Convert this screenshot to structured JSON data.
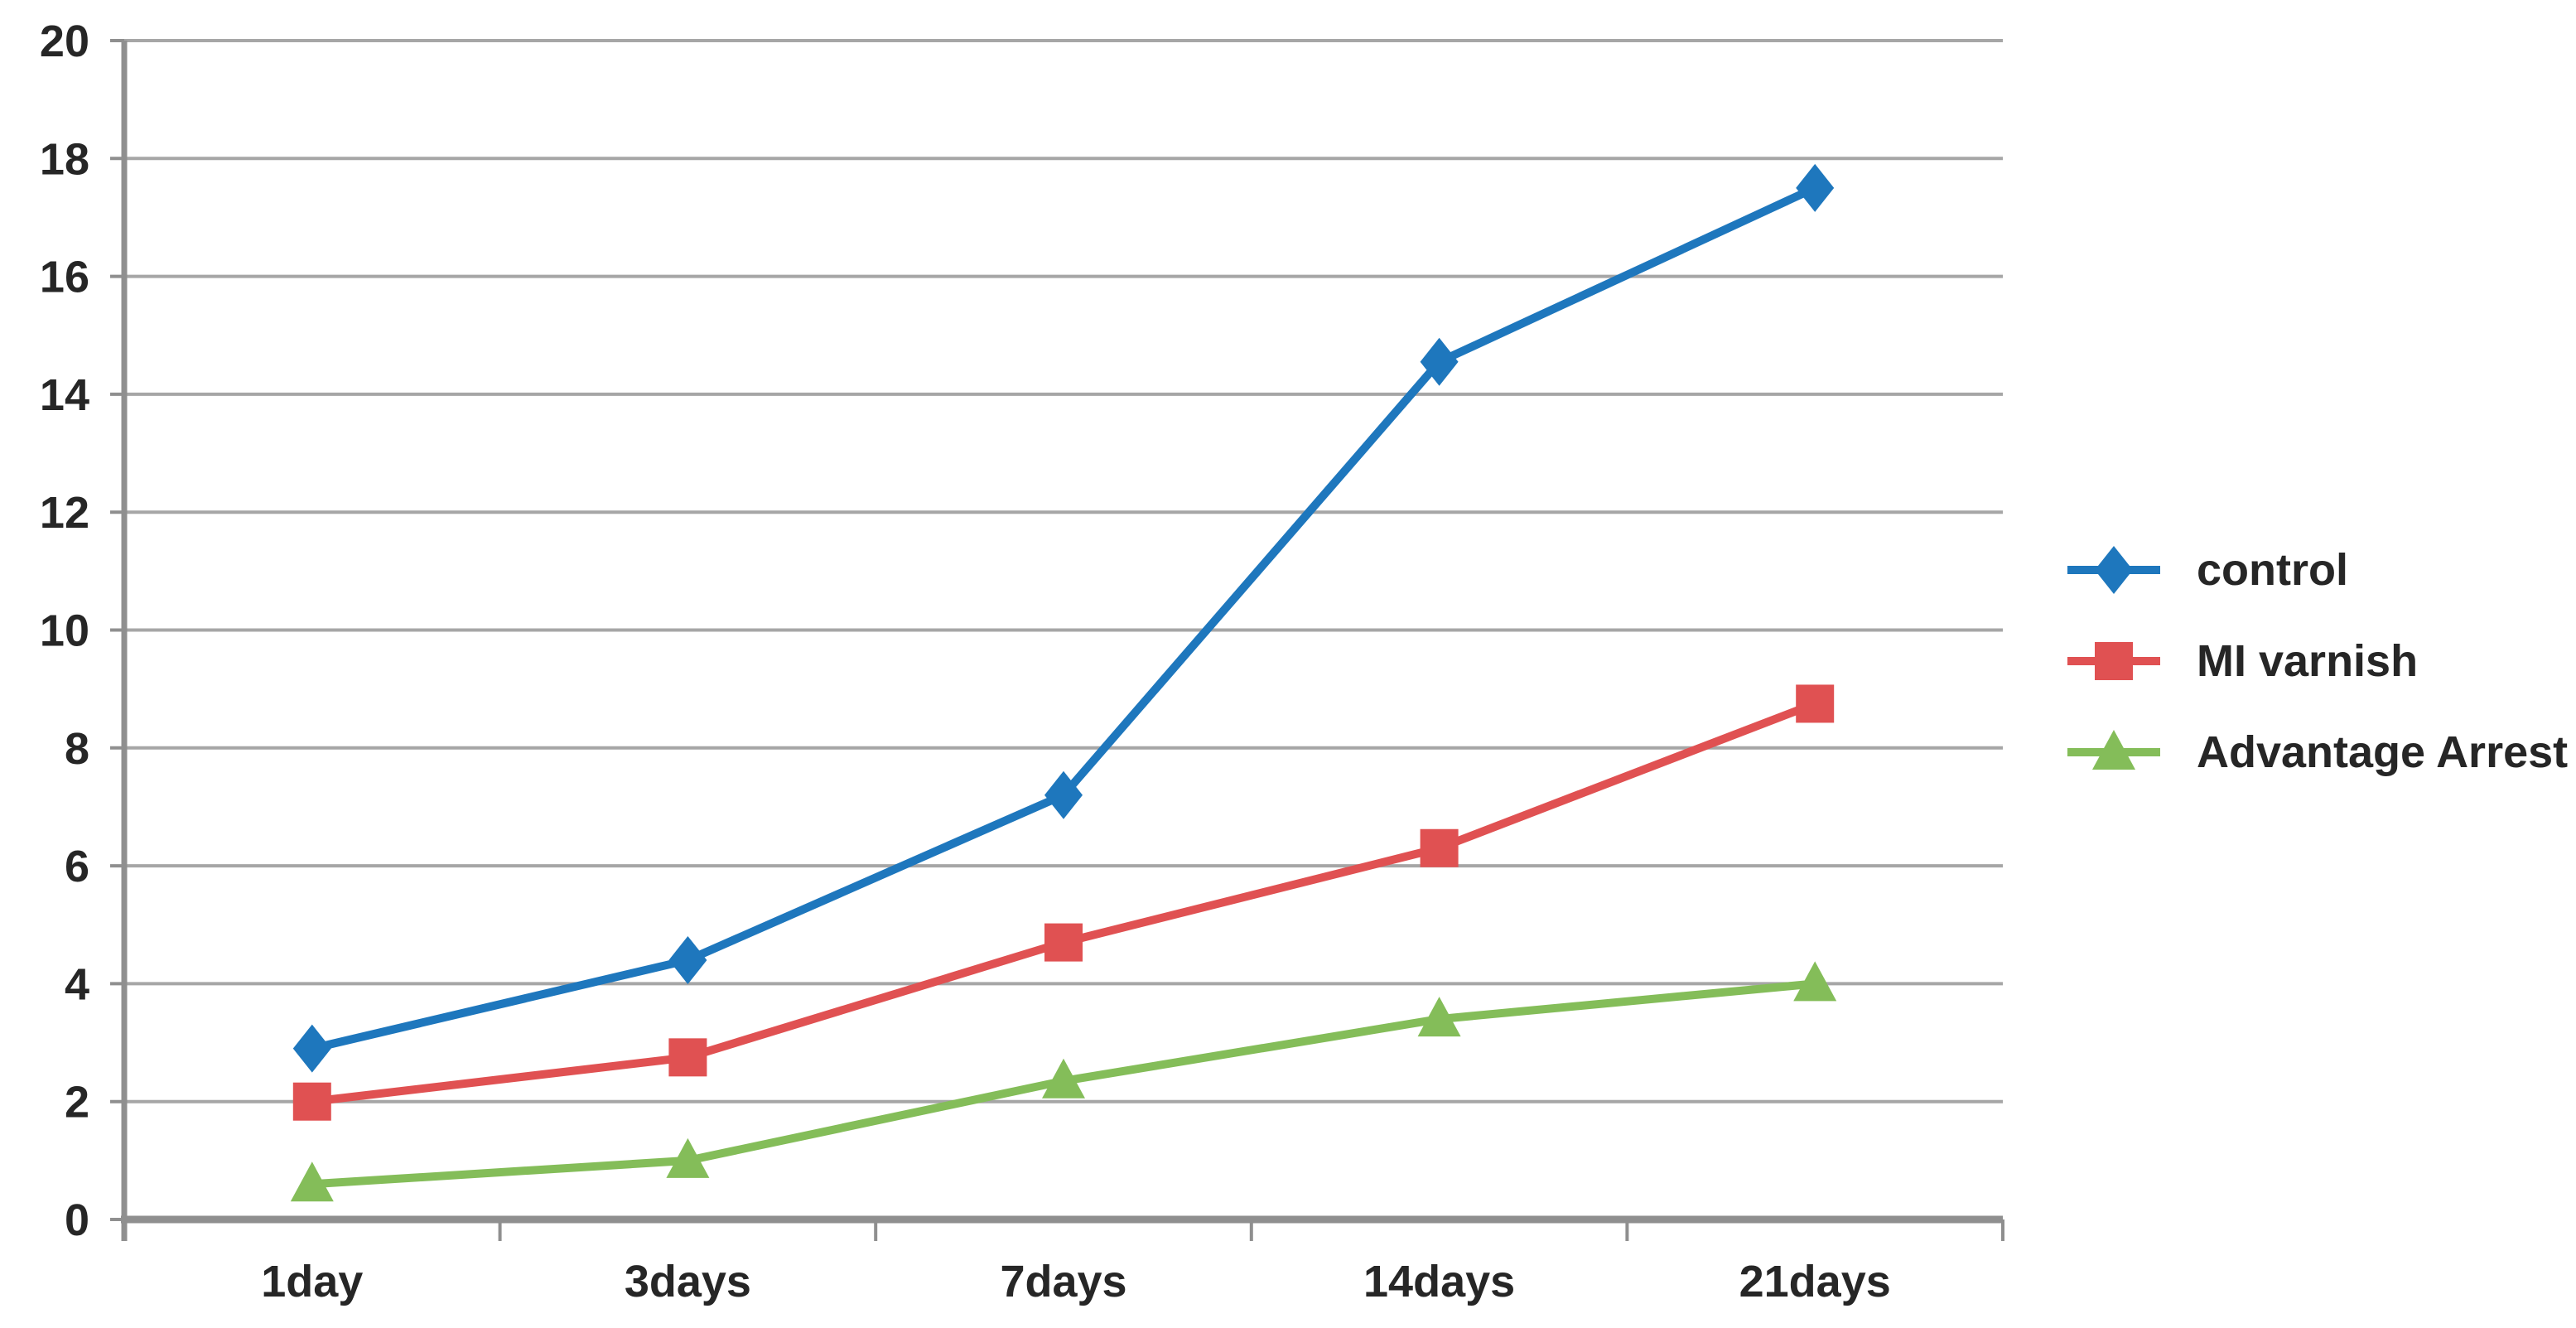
{
  "chart_data": {
    "type": "line",
    "title": "",
    "xlabel": "",
    "ylabel": "",
    "categories": [
      "1day",
      "3days",
      "7days",
      "14days",
      "21days"
    ],
    "series": [
      {
        "name": "control",
        "color": "#1E77BD",
        "marker": "diamond",
        "values": [
          2.9,
          4.4,
          7.2,
          14.55,
          17.5
        ]
      },
      {
        "name": "MI varnish",
        "color": "#E05152",
        "marker": "square",
        "values": [
          2.0,
          2.75,
          4.7,
          6.3,
          8.75
        ]
      },
      {
        "name": "Advantage Arrest",
        "color": "#84BD59",
        "marker": "triangle",
        "values": [
          0.6,
          1.0,
          2.35,
          3.4,
          4.0
        ]
      }
    ],
    "ylim": [
      0,
      20
    ],
    "yticks": [
      0,
      2,
      4,
      6,
      8,
      10,
      12,
      14,
      16,
      18,
      20
    ],
    "grid": true,
    "legend_position": "right",
    "grid_color": "#A6A6A6",
    "axis_color": "#8F8F8F",
    "tick_label_color": "#262626"
  }
}
